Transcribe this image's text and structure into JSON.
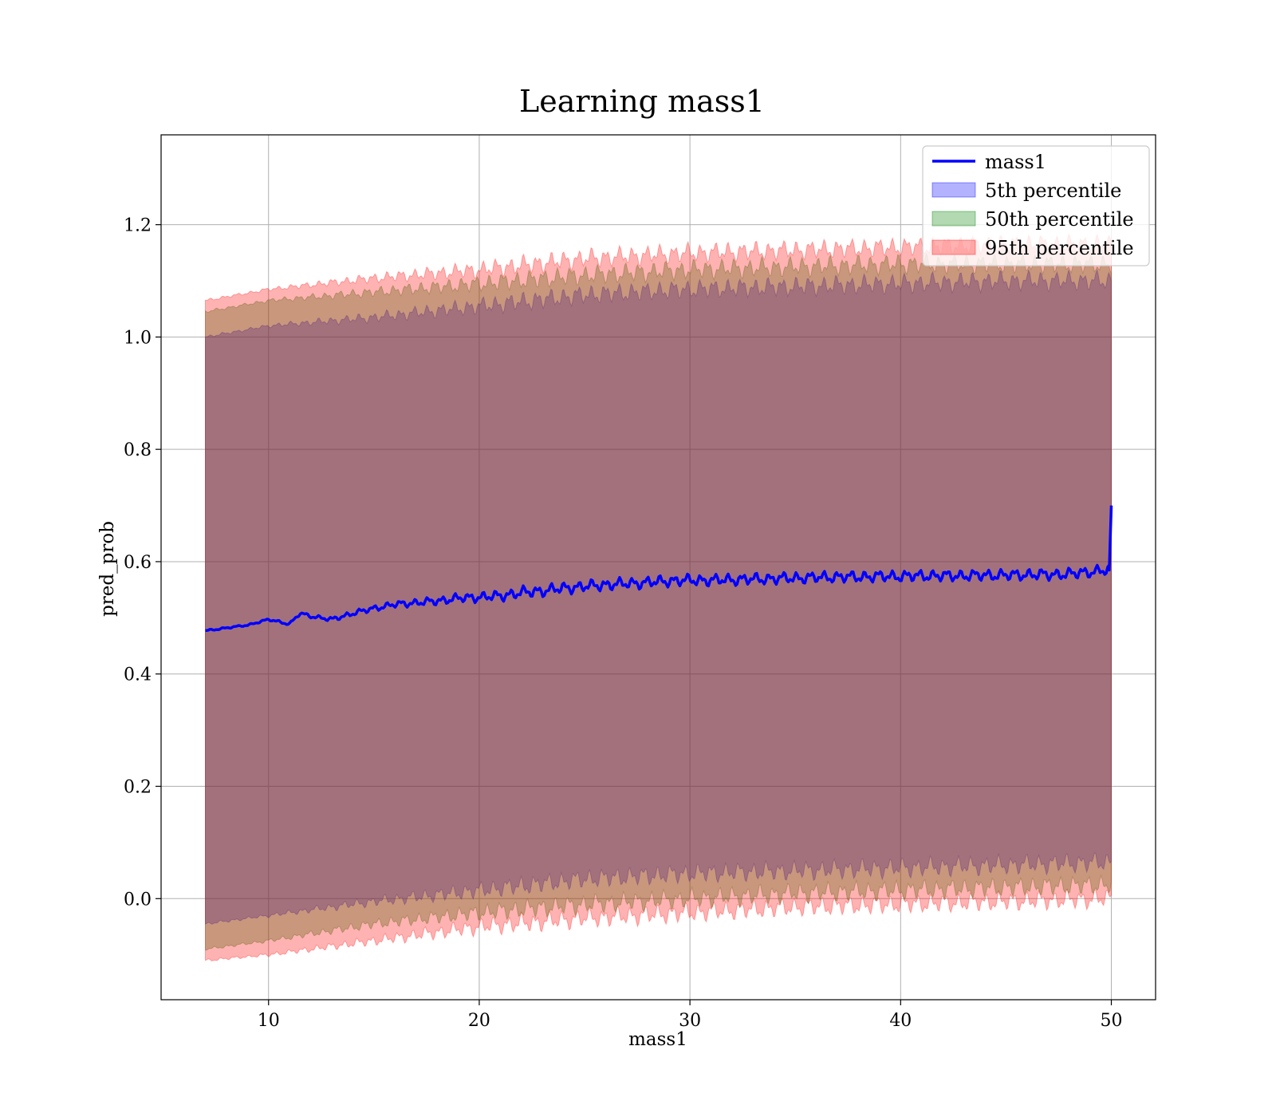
{
  "chart_data": {
    "type": "line",
    "title": "Learning mass1",
    "xlabel": "mass1",
    "ylabel": "pred_prob",
    "xlim": [
      4.9,
      52.1
    ],
    "ylim": [
      -0.18,
      1.36
    ],
    "xticks": [
      10,
      20,
      30,
      40,
      50
    ],
    "yticks": [
      0.0,
      0.2,
      0.4,
      0.6,
      0.8,
      1.0,
      1.2
    ],
    "ytick_labels": [
      "0.0",
      "0.2",
      "0.4",
      "0.6",
      "0.8",
      "1.0",
      "1.2"
    ],
    "grid": true,
    "legend_position": "top-right",
    "x_range": [
      7,
      50
    ],
    "line": {
      "name": "mass1",
      "color": "#0000ff",
      "x": [
        7,
        8,
        9,
        10,
        11,
        11.5,
        12,
        13,
        14,
        15,
        16,
        17,
        18,
        19,
        20,
        21,
        22,
        23,
        24,
        25,
        26,
        27,
        28,
        29,
        30,
        31,
        32,
        33,
        34,
        35,
        36,
        37,
        38,
        39,
        40,
        41,
        42,
        43,
        44,
        45,
        46,
        47,
        48,
        49,
        49.9,
        50
      ],
      "y": [
        0.477,
        0.482,
        0.487,
        0.497,
        0.489,
        0.508,
        0.503,
        0.497,
        0.508,
        0.517,
        0.524,
        0.527,
        0.53,
        0.535,
        0.537,
        0.539,
        0.545,
        0.548,
        0.553,
        0.556,
        0.559,
        0.561,
        0.563,
        0.566,
        0.567,
        0.567,
        0.568,
        0.569,
        0.57,
        0.571,
        0.572,
        0.573,
        0.573,
        0.574,
        0.574,
        0.575,
        0.575,
        0.575,
        0.576,
        0.576,
        0.577,
        0.577,
        0.578,
        0.582,
        0.585,
        0.7
      ]
    },
    "band_series": [
      {
        "name": "5th percentile",
        "color": "#0000ff",
        "opacity": 0.3,
        "x": [
          7,
          10,
          15,
          20,
          25,
          30,
          35,
          40,
          45,
          50
        ],
        "upper": [
          1.0,
          1.02,
          1.035,
          1.055,
          1.075,
          1.085,
          1.09,
          1.095,
          1.1,
          1.1
        ],
        "lower": [
          -0.045,
          -0.03,
          -0.005,
          0.015,
          0.035,
          0.045,
          0.05,
          0.055,
          0.06,
          0.065
        ]
      },
      {
        "name": "50th percentile",
        "color": "#008000",
        "opacity": 0.3,
        "x": [
          7,
          10,
          15,
          20,
          25,
          30,
          35,
          40,
          45,
          50
        ],
        "upper": [
          1.045,
          1.065,
          1.08,
          1.095,
          1.11,
          1.12,
          1.125,
          1.13,
          1.13,
          1.13
        ],
        "lower": [
          -0.09,
          -0.075,
          -0.045,
          -0.025,
          -0.01,
          0.0,
          0.01,
          0.015,
          0.02,
          0.025
        ]
      },
      {
        "name": "95th percentile",
        "color": "#ff0000",
        "opacity": 0.3,
        "x": [
          7,
          10,
          15,
          20,
          25,
          30,
          35,
          40,
          45,
          50
        ],
        "upper": [
          1.065,
          1.085,
          1.105,
          1.12,
          1.14,
          1.15,
          1.155,
          1.16,
          1.165,
          1.165
        ],
        "lower": [
          -0.11,
          -0.1,
          -0.075,
          -0.05,
          -0.035,
          -0.025,
          -0.015,
          -0.01,
          -0.005,
          0.0
        ]
      }
    ]
  }
}
